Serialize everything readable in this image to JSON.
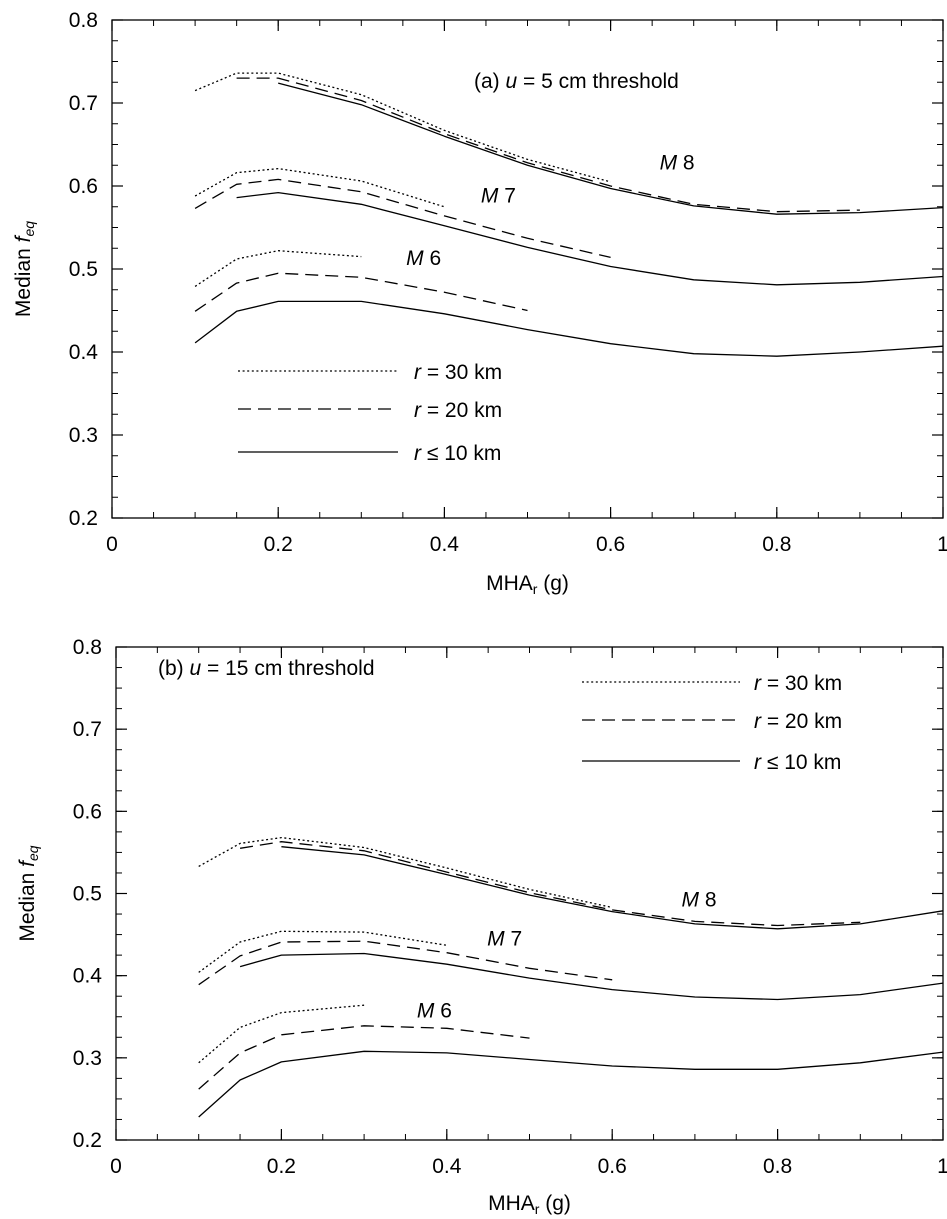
{
  "figure": {
    "tick_color": "#000000"
  },
  "chart_data": [
    {
      "type": "line",
      "panel_id": "a",
      "annotation": {
        "prefix": "(a) ",
        "var": "u",
        "suffix": " = 5 cm threshold"
      },
      "xlabel": {
        "main": "MHA",
        "sub": "r",
        "tail": " (g)"
      },
      "ylabel": {
        "main": "Median ",
        "var": "f",
        "sub": "eq"
      },
      "xlim": [
        0,
        1
      ],
      "ylim": [
        0.2,
        0.8
      ],
      "x_ticks": [
        0,
        0.2,
        0.4,
        0.6,
        0.8,
        1
      ],
      "x_tick_labels": [
        "0",
        "0.2",
        "0.4",
        "0.6",
        "0.8",
        "1"
      ],
      "y_ticks": [
        0.2,
        0.3,
        0.4,
        0.5,
        0.6,
        0.7,
        0.8
      ],
      "y_tick_labels": [
        "0.2",
        "0.3",
        "0.4",
        "0.5",
        "0.6",
        "0.7",
        "0.8"
      ],
      "grid": false,
      "legend": {
        "placement": "lower-left",
        "entries": [
          {
            "style": "dotted",
            "var": "r",
            "text": " = 30 km"
          },
          {
            "style": "dashed",
            "var": "r",
            "text": " = 20 km"
          },
          {
            "style": "solid",
            "var": "r",
            "text": " ≤ 10 km"
          }
        ]
      },
      "magnitude_labels": [
        {
          "var": "M",
          "text": " 8",
          "x": 0.68,
          "y": 0.62
        },
        {
          "var": "M",
          "text": " 7",
          "x": 0.465,
          "y": 0.58
        },
        {
          "var": "M",
          "text": " 6",
          "x": 0.375,
          "y": 0.505
        }
      ],
      "series": [
        {
          "group": "M 8",
          "style": "dotted",
          "x": [
            0.1,
            0.15,
            0.2,
            0.3,
            0.4,
            0.5,
            0.6
          ],
          "y": [
            0.715,
            0.736,
            0.736,
            0.71,
            0.667,
            0.632,
            0.605
          ]
        },
        {
          "group": "M 8",
          "style": "dashed",
          "x": [
            0.15,
            0.2,
            0.3,
            0.4,
            0.5,
            0.6,
            0.7,
            0.8,
            0.9
          ],
          "y": [
            0.73,
            0.73,
            0.703,
            0.663,
            0.628,
            0.6,
            0.578,
            0.569,
            0.571
          ]
        },
        {
          "group": "M 8",
          "style": "solid",
          "x": [
            0.2,
            0.3,
            0.4,
            0.5,
            0.6,
            0.7,
            0.8,
            0.9,
            1.0
          ],
          "y": [
            0.724,
            0.698,
            0.66,
            0.625,
            0.597,
            0.576,
            0.566,
            0.568,
            0.574
          ]
        },
        {
          "group": "M 7",
          "style": "dotted",
          "x": [
            0.1,
            0.15,
            0.2,
            0.3,
            0.4
          ],
          "y": [
            0.588,
            0.616,
            0.621,
            0.606,
            0.575
          ]
        },
        {
          "group": "M 7",
          "style": "dashed",
          "x": [
            0.1,
            0.15,
            0.2,
            0.3,
            0.4,
            0.5,
            0.6
          ],
          "y": [
            0.573,
            0.602,
            0.608,
            0.593,
            0.564,
            0.537,
            0.514
          ]
        },
        {
          "group": "M 7",
          "style": "solid",
          "x": [
            0.15,
            0.2,
            0.3,
            0.4,
            0.5,
            0.6,
            0.7,
            0.8,
            0.9,
            1.0
          ],
          "y": [
            0.586,
            0.592,
            0.578,
            0.552,
            0.526,
            0.503,
            0.487,
            0.481,
            0.484,
            0.491
          ]
        },
        {
          "group": "M 6",
          "style": "dotted",
          "x": [
            0.1,
            0.15,
            0.2,
            0.3
          ],
          "y": [
            0.479,
            0.512,
            0.522,
            0.515
          ]
        },
        {
          "group": "M 6",
          "style": "dashed",
          "x": [
            0.1,
            0.15,
            0.2,
            0.3,
            0.4,
            0.5
          ],
          "y": [
            0.449,
            0.483,
            0.495,
            0.49,
            0.472,
            0.45
          ]
        },
        {
          "group": "M 6",
          "style": "solid",
          "x": [
            0.1,
            0.15,
            0.2,
            0.3,
            0.4,
            0.5,
            0.6,
            0.7,
            0.8,
            0.9,
            1.0
          ],
          "y": [
            0.411,
            0.449,
            0.461,
            0.461,
            0.446,
            0.427,
            0.41,
            0.398,
            0.395,
            0.4,
            0.407
          ]
        }
      ]
    },
    {
      "type": "line",
      "panel_id": "b",
      "annotation": {
        "prefix": "(b) ",
        "var": "u",
        "suffix": " = 15 cm threshold"
      },
      "xlabel": {
        "main": "MHA",
        "sub": "r",
        "tail": " (g)"
      },
      "ylabel": {
        "main": "Median ",
        "var": "f",
        "sub": "eq"
      },
      "xlim": [
        0,
        1
      ],
      "ylim": [
        0.2,
        0.8
      ],
      "x_ticks": [
        0,
        0.2,
        0.4,
        0.6,
        0.8,
        1
      ],
      "x_tick_labels": [
        "0",
        "0.2",
        "0.4",
        "0.6",
        "0.8",
        "1"
      ],
      "y_ticks": [
        0.2,
        0.3,
        0.4,
        0.5,
        0.6,
        0.7,
        0.8
      ],
      "y_tick_labels": [
        "0.2",
        "0.3",
        "0.4",
        "0.5",
        "0.6",
        "0.7",
        "0.8"
      ],
      "grid": false,
      "legend": {
        "placement": "top-right",
        "entries": [
          {
            "style": "dotted",
            "var": "r",
            "text": " = 30 km"
          },
          {
            "style": "dashed",
            "var": "r",
            "text": " = 20 km"
          },
          {
            "style": "solid",
            "var": "r",
            "text": " ≤ 10 km"
          }
        ]
      },
      "magnitude_labels": [
        {
          "var": "M",
          "text": " 8",
          "x": 0.705,
          "y": 0.484
        },
        {
          "var": "M",
          "text": " 7",
          "x": 0.47,
          "y": 0.437
        },
        {
          "var": "M",
          "text": " 6",
          "x": 0.385,
          "y": 0.349
        }
      ],
      "series": [
        {
          "group": "M 8",
          "style": "dotted",
          "x": [
            0.1,
            0.15,
            0.2,
            0.3,
            0.4,
            0.5,
            0.6
          ],
          "y": [
            0.533,
            0.561,
            0.568,
            0.556,
            0.531,
            0.505,
            0.483
          ]
        },
        {
          "group": "M 8",
          "style": "dashed",
          "x": [
            0.15,
            0.2,
            0.3,
            0.4,
            0.5,
            0.6,
            0.7,
            0.8,
            0.9
          ],
          "y": [
            0.555,
            0.563,
            0.552,
            0.526,
            0.501,
            0.48,
            0.466,
            0.461,
            0.465
          ]
        },
        {
          "group": "M 8",
          "style": "solid",
          "x": [
            0.2,
            0.3,
            0.4,
            0.5,
            0.6,
            0.7,
            0.8,
            0.9,
            1.0
          ],
          "y": [
            0.557,
            0.547,
            0.523,
            0.498,
            0.478,
            0.463,
            0.457,
            0.463,
            0.479
          ]
        },
        {
          "group": "M 7",
          "style": "dotted",
          "x": [
            0.1,
            0.15,
            0.2,
            0.3,
            0.4
          ],
          "y": [
            0.404,
            0.441,
            0.454,
            0.453,
            0.437
          ]
        },
        {
          "group": "M 7",
          "style": "dashed",
          "x": [
            0.1,
            0.15,
            0.2,
            0.3,
            0.4,
            0.5,
            0.6
          ],
          "y": [
            0.389,
            0.424,
            0.441,
            0.442,
            0.428,
            0.409,
            0.395
          ]
        },
        {
          "group": "M 7",
          "style": "solid",
          "x": [
            0.15,
            0.2,
            0.3,
            0.4,
            0.5,
            0.6,
            0.7,
            0.8,
            0.9,
            1.0
          ],
          "y": [
            0.411,
            0.425,
            0.427,
            0.414,
            0.397,
            0.383,
            0.374,
            0.371,
            0.377,
            0.391
          ]
        },
        {
          "group": "M 6",
          "style": "dotted",
          "x": [
            0.1,
            0.15,
            0.2,
            0.3
          ],
          "y": [
            0.294,
            0.337,
            0.355,
            0.364
          ]
        },
        {
          "group": "M 6",
          "style": "dashed",
          "x": [
            0.1,
            0.15,
            0.2,
            0.3,
            0.4,
            0.5
          ],
          "y": [
            0.262,
            0.306,
            0.328,
            0.339,
            0.336,
            0.324
          ]
        },
        {
          "group": "M 6",
          "style": "solid",
          "x": [
            0.1,
            0.15,
            0.2,
            0.3,
            0.4,
            0.5,
            0.6,
            0.7,
            0.8,
            0.9,
            1.0
          ],
          "y": [
            0.228,
            0.273,
            0.295,
            0.308,
            0.306,
            0.298,
            0.29,
            0.286,
            0.286,
            0.294,
            0.307
          ]
        }
      ]
    }
  ]
}
